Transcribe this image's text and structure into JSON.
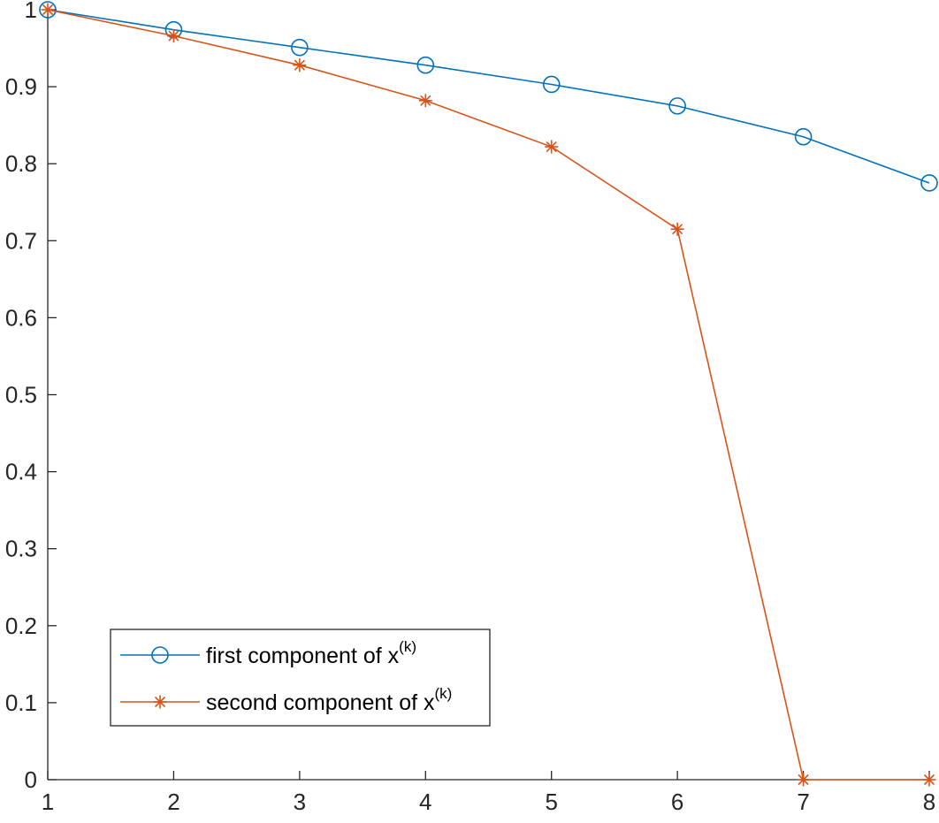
{
  "chart_data": {
    "type": "line",
    "x": [
      1,
      2,
      3,
      4,
      5,
      6,
      7,
      8
    ],
    "xlim": [
      1,
      8
    ],
    "ylim": [
      0,
      1
    ],
    "xticks": [
      "1",
      "2",
      "3",
      "4",
      "5",
      "6",
      "7",
      "8"
    ],
    "yticks": [
      "0",
      "0.1",
      "0.2",
      "0.3",
      "0.4",
      "0.5",
      "0.6",
      "0.7",
      "0.8",
      "0.9",
      "1"
    ],
    "grid": false,
    "legend_position": "bottom-left",
    "series": [
      {
        "name_prefix": "first component of x",
        "name_superscript": "(k)",
        "marker": "circle",
        "color": "#0072BD",
        "values": [
          1.0,
          0.974,
          0.951,
          0.928,
          0.903,
          0.875,
          0.835,
          0.775
        ]
      },
      {
        "name_prefix": "second component of x",
        "name_superscript": "(k)",
        "marker": "asterisk",
        "color": "#D95319",
        "values": [
          1.0,
          0.966,
          0.928,
          0.882,
          0.822,
          0.715,
          0.0,
          0.0
        ]
      }
    ]
  }
}
